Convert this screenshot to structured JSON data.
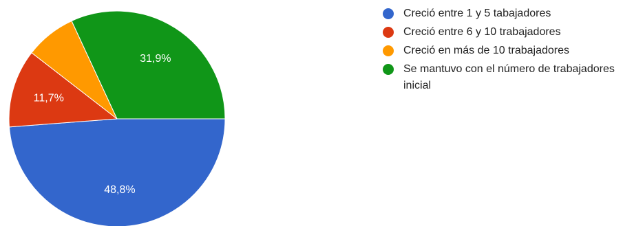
{
  "chart_data": {
    "type": "pie",
    "categories": [
      "Creció entre 1 y 5 tabajadores",
      "Creció entre 6 y 10 trabajadores",
      "Creció en más de 10 trabajadores",
      "Se mantuvo con el número de trabajadores inicial"
    ],
    "values": [
      48.8,
      11.7,
      7.6,
      31.9
    ],
    "value_labels": [
      "48,8%",
      "11,7%",
      "",
      "31,9%"
    ],
    "colors": [
      "#3366cc",
      "#dc3912",
      "#ff9900",
      "#109618"
    ],
    "legend_position": "right"
  }
}
